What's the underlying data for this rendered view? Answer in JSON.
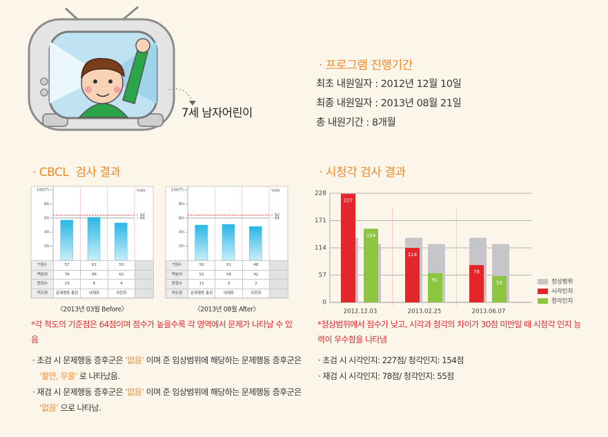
{
  "header": {
    "caption": "7세 남자어린이"
  },
  "program": {
    "title": "· 프로그램 진행기간",
    "lines": [
      "최초 내원일자 : 2012년 12월 10일",
      "최종 내원일자 : 2013년 08월 21일",
      "총 내원기간 : 8개월"
    ]
  },
  "cbcl": {
    "title": "· CBCL  검사 결과",
    "note": "*각 척도의 기준점은 64점이며 점수가 높을수록 각 영역에서 문제가 나타날 수 있음",
    "bullets": [
      {
        "segments": [
          "· 초검 시 문제행동 증후군은 ",
          "‘없음’",
          " 이며 준 임상범위에 해당하는 문제행동 증후군은 ",
          "‘불안, 우울’",
          " 로 나타났음."
        ]
      },
      {
        "segments": [
          "· 재검 시 문제행동 증후군은 ",
          "‘없음’",
          " 이며 준 임상범위에 해당하는 문제행동 증후군은 ",
          "‘없음’",
          " 으로 나타남."
        ]
      }
    ]
  },
  "av": {
    "title": "· 시청각 검사 결과",
    "note": "*정상범위에서 점수가 낮고, 시각과 청각의 차이가 30점 미만일 때 시청각 인지 능력이 우수함을 나타냄",
    "bullets": [
      "· 초검 시 시각인지: 227점/ 청각인지: 154점",
      "· 재검 시 시각인지: 78점/ 청각인지: 55점"
    ]
  },
  "chart_data": [
    {
      "type": "cbcl",
      "caption": "〈2013년 03월 Before〉",
      "categories": [
        "문제행동 총점",
        "내재화",
        "외현화"
      ],
      "values": [
        57,
        61,
        53
      ],
      "color": "#29b6e6",
      "ylim": [
        0,
        100
      ],
      "yticks": [
        {
          "value": 100,
          "label": "100(T)"
        },
        80,
        60,
        40,
        20
      ],
      "y2_label": "%tile",
      "reference_lines": [
        {
          "value": 64,
          "label": "92",
          "color": "#e3262b"
        },
        {
          "value": 60,
          "label": "84",
          "color": "#999999"
        }
      ],
      "table": {
        "value_row": "T점수",
        "rows": [
          {
            "name": "백분위",
            "values": [
              76,
              86,
              62
            ]
          },
          {
            "name": "원점수",
            "values": [
              23,
              8,
              4
            ]
          }
        ],
        "header": "척도명"
      }
    },
    {
      "type": "cbcl",
      "caption": "〈2013년 08월 After〉",
      "categories": [
        "문제행동 총점",
        "내재화",
        "외현화"
      ],
      "values": [
        50,
        51,
        48
      ],
      "color": "#29b6e6",
      "ylim": [
        0,
        100
      ],
      "yticks": [
        {
          "value": 100,
          "label": "100(T)"
        },
        80,
        60,
        40,
        20
      ],
      "y2_label": "%tile",
      "reference_lines": [
        {
          "value": 64,
          "label": "92",
          "color": "#e3262b"
        },
        {
          "value": 60,
          "label": "84",
          "color": "#999999"
        }
      ],
      "table": {
        "value_row": "T점수",
        "rows": [
          {
            "name": "백분위",
            "values": [
              52,
              56,
              42
            ]
          },
          {
            "name": "원점수",
            "values": [
              12,
              3,
              2
            ]
          }
        ],
        "header": "척도명"
      }
    },
    {
      "type": "bar",
      "categories": [
        "2012.12.03",
        "2013.02.25",
        "2013.06.07"
      ],
      "ylim": [
        0,
        228
      ],
      "yticks": [
        0,
        57,
        114,
        171,
        228
      ],
      "grid": true,
      "normal_range": {
        "name": "정상범위",
        "color": "#c6c6ca",
        "visual": [
          135,
          135,
          135
        ],
        "auditory": [
          122,
          122,
          122
        ]
      },
      "series": [
        {
          "name": "시각인지",
          "color": "#e3262b",
          "values": [
            227,
            114,
            78
          ]
        },
        {
          "name": "청각인지",
          "color": "#8cc63f",
          "values": [
            154,
            61,
            55
          ]
        }
      ],
      "legend": "right"
    }
  ]
}
